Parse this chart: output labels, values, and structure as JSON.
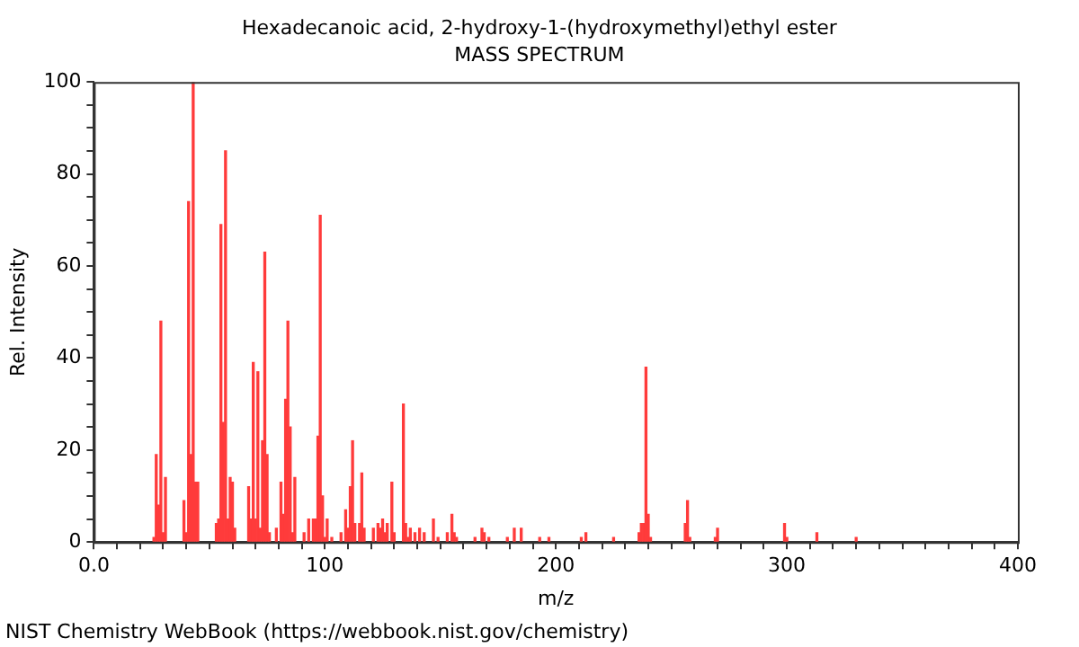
{
  "chart_data": {
    "type": "bar",
    "title": "Hexadecanoic acid, 2-hydroxy-1-(hydroxymethyl)ethyl ester",
    "subtitle": "MASS SPECTRUM",
    "xlabel": "m/z",
    "ylabel": "Rel. Intensity",
    "annotations": [
      "NIST Chemistry WebBook (https://webbook.nist.gov/chemistry)"
    ],
    "x": [
      26,
      27,
      28,
      29,
      30,
      31,
      39,
      40,
      41,
      42,
      43,
      44,
      45,
      53,
      54,
      55,
      56,
      57,
      58,
      59,
      60,
      61,
      67,
      68,
      69,
      70,
      71,
      72,
      73,
      74,
      75,
      76,
      79,
      81,
      82,
      83,
      84,
      85,
      86,
      87,
      91,
      93,
      95,
      96,
      97,
      98,
      99,
      100,
      101,
      103,
      107,
      109,
      110,
      111,
      112,
      113,
      115,
      116,
      117,
      121,
      123,
      124,
      125,
      126,
      127,
      129,
      130,
      134,
      135,
      136,
      137,
      139,
      141,
      143,
      147,
      149,
      153,
      155,
      156,
      157,
      165,
      168,
      169,
      171,
      179,
      182,
      185,
      193,
      197,
      211,
      213,
      225,
      236,
      237,
      238,
      239,
      240,
      241,
      256,
      257,
      258,
      269,
      270,
      299,
      300,
      313,
      330
    ],
    "values": [
      1,
      19,
      8,
      48,
      2,
      14,
      9,
      2,
      74,
      19,
      100,
      13,
      13,
      4,
      5,
      69,
      26,
      85,
      5,
      14,
      13,
      3,
      12,
      5,
      39,
      5,
      37,
      3,
      22,
      63,
      19,
      2,
      3,
      13,
      6,
      31,
      48,
      25,
      2,
      14,
      2,
      5,
      5,
      5,
      23,
      71,
      10,
      1,
      5,
      1,
      2,
      7,
      3,
      12,
      22,
      4,
      4,
      15,
      3,
      3,
      4,
      3,
      5,
      2,
      4,
      13,
      2,
      30,
      4,
      1,
      3,
      2,
      3,
      2,
      5,
      1,
      2,
      6,
      2,
      1,
      1,
      3,
      2,
      1,
      1,
      3,
      3,
      1,
      1,
      1,
      2,
      1,
      2,
      4,
      4,
      38,
      6,
      1,
      4,
      9,
      1,
      1,
      3,
      4,
      1,
      2,
      1
    ],
    "color": "#ff3b3b",
    "xlim": [
      0,
      400
    ],
    "xticks": [
      {
        "value": 0,
        "label": "0.0"
      },
      {
        "value": 10,
        "label": null
      },
      {
        "value": 20,
        "label": null
      },
      {
        "value": 30,
        "label": null
      },
      {
        "value": 40,
        "label": null
      },
      {
        "value": 50,
        "label": null
      },
      {
        "value": 60,
        "label": null
      },
      {
        "value": 70,
        "label": null
      },
      {
        "value": 80,
        "label": null
      },
      {
        "value": 90,
        "label": null
      },
      100,
      {
        "value": 110,
        "label": null
      },
      {
        "value": 120,
        "label": null
      },
      {
        "value": 130,
        "label": null
      },
      {
        "value": 140,
        "label": null
      },
      {
        "value": 150,
        "label": null
      },
      {
        "value": 160,
        "label": null
      },
      {
        "value": 170,
        "label": null
      },
      {
        "value": 180,
        "label": null
      },
      {
        "value": 190,
        "label": null
      },
      200,
      {
        "value": 210,
        "label": null
      },
      {
        "value": 220,
        "label": null
      },
      {
        "value": 230,
        "label": null
      },
      {
        "value": 240,
        "label": null
      },
      {
        "value": 250,
        "label": null
      },
      {
        "value": 260,
        "label": null
      },
      {
        "value": 270,
        "label": null
      },
      {
        "value": 280,
        "label": null
      },
      {
        "value": 290,
        "label": null
      },
      300,
      {
        "value": 310,
        "label": null
      },
      {
        "value": 320,
        "label": null
      },
      {
        "value": 330,
        "label": null
      },
      {
        "value": 340,
        "label": null
      },
      {
        "value": 350,
        "label": null
      },
      {
        "value": 360,
        "label": null
      },
      {
        "value": 370,
        "label": null
      },
      {
        "value": 380,
        "label": null
      },
      {
        "value": 390,
        "label": null
      },
      400
    ],
    "ylim": [
      0,
      100
    ],
    "yticks": [
      0,
      {
        "value": 5,
        "label": null
      },
      {
        "value": 10,
        "label": null
      },
      {
        "value": 15,
        "label": null
      },
      20,
      {
        "value": 25,
        "label": null
      },
      {
        "value": 30,
        "label": null
      },
      {
        "value": 35,
        "label": null
      },
      40,
      {
        "value": 45,
        "label": null
      },
      {
        "value": 50,
        "label": null
      },
      {
        "value": 55,
        "label": null
      },
      60,
      {
        "value": 65,
        "label": null
      },
      {
        "value": 70,
        "label": null
      },
      {
        "value": 75,
        "label": null
      },
      80,
      {
        "value": 85,
        "label": null
      },
      {
        "value": 90,
        "label": null
      },
      {
        "value": 95,
        "label": null
      },
      100
    ]
  }
}
